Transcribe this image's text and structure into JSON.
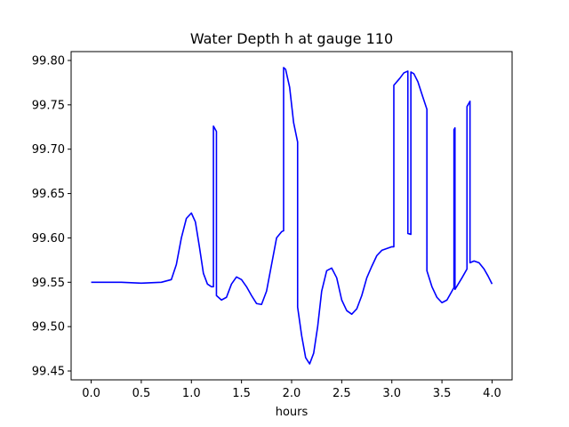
{
  "chart_data": {
    "type": "line",
    "title": "Water Depth h at gauge 110",
    "xlabel": "hours",
    "ylabel": "",
    "xlim": [
      -0.2,
      4.2
    ],
    "ylim": [
      99.44,
      99.81
    ],
    "xticks": [
      0.0,
      0.5,
      1.0,
      1.5,
      2.0,
      2.5,
      3.0,
      3.5,
      4.0
    ],
    "xtick_labels": [
      "0.0",
      "0.5",
      "1.0",
      "1.5",
      "2.0",
      "2.5",
      "3.0",
      "3.5",
      "4.0"
    ],
    "yticks": [
      99.45,
      99.5,
      99.55,
      99.6,
      99.65,
      99.7,
      99.75,
      99.8
    ],
    "ytick_labels": [
      "99.45",
      "99.50",
      "99.55",
      "99.60",
      "99.65",
      "99.70",
      "99.75",
      "99.80"
    ],
    "grid": false,
    "line_color": "#0000ff",
    "series": [
      {
        "x": [
          0.0,
          0.3,
          0.5,
          0.7,
          0.8,
          0.85,
          0.9,
          0.95,
          1.0,
          1.04,
          1.08,
          1.12,
          1.16,
          1.2,
          1.22,
          1.22,
          1.25,
          1.25,
          1.3,
          1.35,
          1.4,
          1.45,
          1.5,
          1.55,
          1.6,
          1.65,
          1.7,
          1.75,
          1.8,
          1.85,
          1.9,
          1.92,
          1.92,
          1.94,
          1.98,
          2.02,
          2.06,
          2.06,
          2.1,
          2.14,
          2.18,
          2.22,
          2.26,
          2.3,
          2.35,
          2.4,
          2.45,
          2.5,
          2.55,
          2.6,
          2.65,
          2.7,
          2.75,
          2.8,
          2.85,
          2.9,
          2.95,
          3.0,
          3.02,
          3.02,
          3.08,
          3.12,
          3.16,
          3.16,
          3.19,
          3.19,
          3.22,
          3.26,
          3.3,
          3.35,
          3.35,
          3.4,
          3.45,
          3.5,
          3.55,
          3.6,
          3.62,
          3.62,
          3.63,
          3.63,
          3.7,
          3.75,
          3.75,
          3.78,
          3.78,
          3.82,
          3.87,
          3.92,
          3.96,
          4.0
        ],
        "y": [
          99.55,
          99.55,
          99.549,
          99.55,
          99.553,
          99.57,
          99.6,
          99.622,
          99.628,
          99.618,
          99.59,
          99.56,
          99.548,
          99.545,
          99.545,
          99.726,
          99.72,
          99.535,
          99.53,
          99.533,
          99.548,
          99.556,
          99.553,
          99.545,
          99.535,
          99.526,
          99.525,
          99.54,
          99.57,
          99.6,
          99.607,
          99.608,
          99.792,
          99.79,
          99.77,
          99.73,
          99.708,
          99.522,
          99.49,
          99.465,
          99.458,
          99.47,
          99.5,
          99.54,
          99.563,
          99.566,
          99.555,
          99.53,
          99.518,
          99.514,
          99.52,
          99.535,
          99.555,
          99.568,
          99.58,
          99.586,
          99.588,
          99.59,
          99.59,
          99.772,
          99.78,
          99.786,
          99.788,
          99.605,
          99.604,
          99.787,
          99.785,
          99.776,
          99.762,
          99.745,
          99.563,
          99.545,
          99.533,
          99.527,
          99.53,
          99.54,
          99.544,
          99.722,
          99.724,
          99.542,
          99.555,
          99.565,
          99.748,
          99.754,
          99.572,
          99.574,
          99.572,
          99.565,
          99.557,
          99.548
        ]
      }
    ]
  }
}
